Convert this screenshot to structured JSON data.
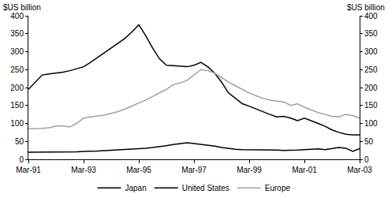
{
  "chart_data": {
    "type": "line",
    "ylabel": "$US billion",
    "y2label": "$US billion",
    "categories": [
      "Mar-91",
      null,
      null,
      null,
      null,
      null,
      null,
      null,
      "Mar-93",
      null,
      null,
      null,
      null,
      null,
      null,
      null,
      "Mar-95",
      null,
      null,
      null,
      null,
      null,
      null,
      null,
      "Mar-97",
      null,
      null,
      null,
      null,
      null,
      null,
      null,
      "Mar-99",
      null,
      null,
      null,
      null,
      null,
      null,
      null,
      "Mar-01",
      null,
      null,
      null,
      null,
      null,
      null,
      null,
      "Mar-03"
    ],
    "series": [
      {
        "name": "Japan",
        "color": "#000000",
        "line_style": "solid",
        "values": [
          195,
          215,
          235,
          238,
          240,
          243,
          247,
          252,
          258,
          270,
          283,
          297,
          310,
          323,
          337,
          355,
          375,
          345,
          310,
          280,
          262,
          261,
          260,
          258,
          262,
          270,
          258,
          240,
          215,
          185,
          170,
          155,
          148,
          140,
          133,
          125,
          118,
          120,
          115,
          108,
          115,
          108,
          100,
          92,
          82,
          75,
          70,
          68,
          68
        ]
      },
      {
        "name": "United States",
        "color": "#000000",
        "line_style": "solid",
        "values": [
          20,
          20,
          20,
          20,
          20,
          20,
          21,
          21,
          22,
          22,
          23,
          24,
          25,
          26,
          27,
          28,
          30,
          31,
          33,
          35,
          38,
          41,
          44,
          46,
          44,
          42,
          40,
          37,
          33,
          30,
          28,
          27,
          27,
          26,
          26,
          27,
          26,
          25,
          25,
          26,
          27,
          28,
          29,
          27,
          30,
          33,
          31,
          22,
          30
        ]
      },
      {
        "name": "Europe",
        "color": "#a0a0a0",
        "line_style": "solid",
        "values": [
          85,
          85,
          86,
          88,
          93,
          93,
          90,
          100,
          115,
          118,
          120,
          123,
          128,
          133,
          140,
          148,
          157,
          165,
          175,
          185,
          195,
          208,
          213,
          220,
          235,
          250,
          247,
          240,
          228,
          215,
          205,
          195,
          185,
          177,
          170,
          165,
          162,
          160,
          150,
          155,
          145,
          138,
          130,
          125,
          120,
          118,
          125,
          122,
          115
        ]
      }
    ],
    "ylim": [
      0,
      400
    ],
    "yticks": [
      0,
      50,
      100,
      150,
      200,
      250,
      300,
      350,
      400
    ],
    "y2lim": [
      0,
      400
    ],
    "y2ticks": [
      0,
      50,
      100,
      150,
      200,
      250,
      300,
      350,
      400
    ],
    "grid": false,
    "legend": "bottom"
  }
}
